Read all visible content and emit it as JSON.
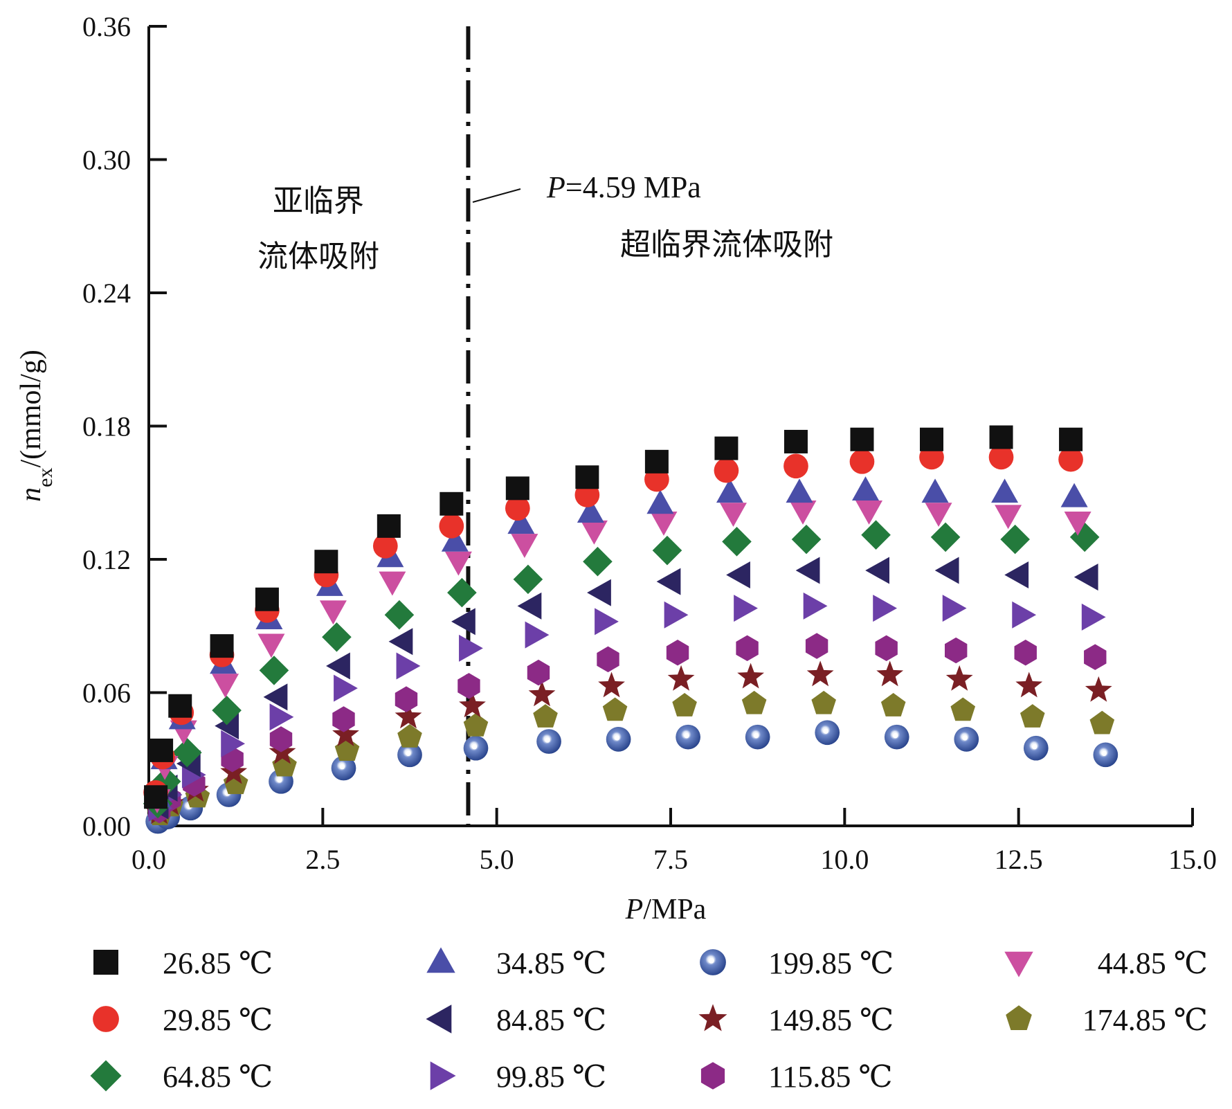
{
  "chart_data": {
    "type": "scatter",
    "xlabel_italic": "P",
    "xlabel_rest": "/MPa",
    "ylabel_italic": "n",
    "ylabel_sub": "ex",
    "ylabel_rest": "/(mmol/g)",
    "xlim": [
      0,
      15
    ],
    "ylim": [
      0,
      0.36
    ],
    "x_ticks": [
      "0.0",
      "2.5",
      "5.0",
      "7.5",
      "10.0",
      "12.5",
      "15.0"
    ],
    "y_ticks": [
      "0.00",
      "0.06",
      "0.12",
      "0.18",
      "0.24",
      "0.30",
      "0.36"
    ],
    "grid": false,
    "critical_line": {
      "x": 4.59,
      "label_italic": "P",
      "label_rest": "=4.59 MPa"
    },
    "annotations": {
      "subcritical_line1": "亚临界",
      "subcritical_line2": "流体吸附",
      "supercritical": "超临界流体吸附"
    },
    "legend_position": "bottom",
    "series": [
      {
        "name": "26.85 ℃",
        "marker": "square",
        "color": "#111111",
        "points": [
          [
            0.1,
            0.013
          ],
          [
            0.18,
            0.034
          ],
          [
            0.45,
            0.054
          ],
          [
            1.05,
            0.081
          ],
          [
            1.7,
            0.102
          ],
          [
            2.55,
            0.119
          ],
          [
            3.45,
            0.135
          ],
          [
            4.35,
            0.145
          ],
          [
            5.3,
            0.152
          ],
          [
            6.3,
            0.157
          ],
          [
            7.3,
            0.164
          ],
          [
            8.3,
            0.17
          ],
          [
            9.3,
            0.173
          ],
          [
            10.25,
            0.174
          ],
          [
            11.25,
            0.174
          ],
          [
            12.25,
            0.175
          ],
          [
            13.25,
            0.174
          ]
        ]
      },
      {
        "name": "29.85 ℃",
        "marker": "circle",
        "color": "#e8322a",
        "points": [
          [
            0.1,
            0.015
          ],
          [
            0.2,
            0.031
          ],
          [
            0.47,
            0.051
          ],
          [
            1.05,
            0.077
          ],
          [
            1.7,
            0.097
          ],
          [
            2.55,
            0.113
          ],
          [
            3.4,
            0.126
          ],
          [
            4.35,
            0.135
          ],
          [
            5.3,
            0.143
          ],
          [
            6.3,
            0.149
          ],
          [
            7.3,
            0.156
          ],
          [
            8.3,
            0.16
          ],
          [
            9.3,
            0.162
          ],
          [
            10.25,
            0.164
          ],
          [
            11.25,
            0.166
          ],
          [
            12.25,
            0.166
          ],
          [
            13.25,
            0.165
          ]
        ]
      },
      {
        "name": "34.85 ℃",
        "marker": "triangle-up",
        "color": "#4a4ea8",
        "points": [
          [
            0.12,
            0.013
          ],
          [
            0.22,
            0.03
          ],
          [
            0.48,
            0.048
          ],
          [
            1.07,
            0.073
          ],
          [
            1.73,
            0.093
          ],
          [
            2.6,
            0.108
          ],
          [
            3.47,
            0.121
          ],
          [
            4.4,
            0.128
          ],
          [
            5.35,
            0.136
          ],
          [
            6.35,
            0.141
          ],
          [
            7.35,
            0.145
          ],
          [
            8.35,
            0.15
          ],
          [
            9.35,
            0.15
          ],
          [
            10.3,
            0.151
          ],
          [
            11.3,
            0.15
          ],
          [
            12.3,
            0.15
          ],
          [
            13.3,
            0.148
          ]
        ]
      },
      {
        "name": "44.85 ℃",
        "marker": "triangle-down",
        "color": "#cc4fa0",
        "points": [
          [
            0.12,
            0.012
          ],
          [
            0.23,
            0.027
          ],
          [
            0.5,
            0.043
          ],
          [
            1.1,
            0.064
          ],
          [
            1.76,
            0.082
          ],
          [
            2.65,
            0.097
          ],
          [
            3.5,
            0.11
          ],
          [
            4.45,
            0.119
          ],
          [
            5.4,
            0.127
          ],
          [
            6.4,
            0.133
          ],
          [
            7.4,
            0.137
          ],
          [
            8.4,
            0.141
          ],
          [
            9.4,
            0.142
          ],
          [
            10.35,
            0.142
          ],
          [
            11.35,
            0.141
          ],
          [
            12.35,
            0.14
          ],
          [
            13.35,
            0.137
          ]
        ]
      },
      {
        "name": "64.85 ℃",
        "marker": "diamond",
        "color": "#237a3c",
        "points": [
          [
            0.13,
            0.01
          ],
          [
            0.25,
            0.02
          ],
          [
            0.55,
            0.033
          ],
          [
            1.12,
            0.052
          ],
          [
            1.8,
            0.07
          ],
          [
            2.7,
            0.085
          ],
          [
            3.6,
            0.095
          ],
          [
            4.5,
            0.105
          ],
          [
            5.45,
            0.111
          ],
          [
            6.45,
            0.119
          ],
          [
            7.45,
            0.124
          ],
          [
            8.45,
            0.128
          ],
          [
            9.45,
            0.129
          ],
          [
            10.45,
            0.131
          ],
          [
            11.45,
            0.13
          ],
          [
            12.45,
            0.129
          ],
          [
            13.45,
            0.13
          ]
        ]
      },
      {
        "name": "84.85 ℃",
        "marker": "triangle-left",
        "color": "#2c2561",
        "points": [
          [
            0.14,
            0.009
          ],
          [
            0.27,
            0.017
          ],
          [
            0.6,
            0.028
          ],
          [
            1.15,
            0.045
          ],
          [
            1.85,
            0.058
          ],
          [
            2.75,
            0.072
          ],
          [
            3.65,
            0.083
          ],
          [
            4.55,
            0.092
          ],
          [
            5.5,
            0.099
          ],
          [
            6.5,
            0.105
          ],
          [
            7.5,
            0.11
          ],
          [
            8.5,
            0.113
          ],
          [
            9.5,
            0.115
          ],
          [
            10.5,
            0.115
          ],
          [
            11.5,
            0.115
          ],
          [
            12.5,
            0.113
          ],
          [
            13.5,
            0.112
          ]
        ]
      },
      {
        "name": "99.85 ℃",
        "marker": "triangle-right",
        "color": "#6c3fa8",
        "points": [
          [
            0.14,
            0.008
          ],
          [
            0.28,
            0.014
          ],
          [
            0.62,
            0.023
          ],
          [
            1.18,
            0.037
          ],
          [
            1.88,
            0.049
          ],
          [
            2.8,
            0.062
          ],
          [
            3.7,
            0.072
          ],
          [
            4.6,
            0.08
          ],
          [
            5.55,
            0.086
          ],
          [
            6.55,
            0.092
          ],
          [
            7.55,
            0.095
          ],
          [
            8.55,
            0.098
          ],
          [
            9.55,
            0.099
          ],
          [
            10.55,
            0.098
          ],
          [
            11.55,
            0.098
          ],
          [
            12.55,
            0.095
          ],
          [
            13.55,
            0.094
          ]
        ]
      },
      {
        "name": "115.85 ℃",
        "marker": "hexagon",
        "color": "#8c2a86",
        "points": [
          [
            0.15,
            0.007
          ],
          [
            0.3,
            0.012
          ],
          [
            0.65,
            0.019
          ],
          [
            1.2,
            0.03
          ],
          [
            1.9,
            0.039
          ],
          [
            2.8,
            0.048
          ],
          [
            3.7,
            0.057
          ],
          [
            4.6,
            0.063
          ],
          [
            5.6,
            0.069
          ],
          [
            6.6,
            0.075
          ],
          [
            7.6,
            0.078
          ],
          [
            8.6,
            0.08
          ],
          [
            9.6,
            0.081
          ],
          [
            10.6,
            0.08
          ],
          [
            11.6,
            0.079
          ],
          [
            12.6,
            0.078
          ],
          [
            13.6,
            0.076
          ]
        ]
      },
      {
        "name": "149.85 ℃",
        "marker": "star",
        "color": "#7a1f24",
        "points": [
          [
            0.15,
            0.006
          ],
          [
            0.31,
            0.01
          ],
          [
            0.67,
            0.016
          ],
          [
            1.22,
            0.024
          ],
          [
            1.92,
            0.033
          ],
          [
            2.83,
            0.041
          ],
          [
            3.73,
            0.049
          ],
          [
            4.65,
            0.054
          ],
          [
            5.65,
            0.059
          ],
          [
            6.65,
            0.063
          ],
          [
            7.65,
            0.066
          ],
          [
            8.65,
            0.067
          ],
          [
            9.65,
            0.068
          ],
          [
            10.65,
            0.068
          ],
          [
            11.65,
            0.066
          ],
          [
            12.65,
            0.063
          ],
          [
            13.65,
            0.061
          ]
        ]
      },
      {
        "name": "174.85 ℃",
        "marker": "pentagon",
        "color": "#7d7a2a",
        "points": [
          [
            0.16,
            0.005
          ],
          [
            0.32,
            0.009
          ],
          [
            0.7,
            0.013
          ],
          [
            1.25,
            0.019
          ],
          [
            1.95,
            0.027
          ],
          [
            2.85,
            0.034
          ],
          [
            3.75,
            0.04
          ],
          [
            4.7,
            0.045
          ],
          [
            5.7,
            0.049
          ],
          [
            6.7,
            0.052
          ],
          [
            7.7,
            0.054
          ],
          [
            8.7,
            0.055
          ],
          [
            9.7,
            0.055
          ],
          [
            10.7,
            0.054
          ],
          [
            11.7,
            0.052
          ],
          [
            12.7,
            0.049
          ],
          [
            13.7,
            0.046
          ]
        ]
      },
      {
        "name": "199.85 ℃",
        "marker": "sphere",
        "color": "#2e4a9a",
        "points": [
          [
            0.13,
            0.002
          ],
          [
            0.27,
            0.004
          ],
          [
            0.6,
            0.008
          ],
          [
            1.15,
            0.014
          ],
          [
            1.9,
            0.02
          ],
          [
            2.8,
            0.026
          ],
          [
            3.75,
            0.032
          ],
          [
            4.7,
            0.035
          ],
          [
            5.75,
            0.038
          ],
          [
            6.75,
            0.039
          ],
          [
            7.75,
            0.04
          ],
          [
            8.75,
            0.04
          ],
          [
            9.75,
            0.042
          ],
          [
            10.75,
            0.04
          ],
          [
            11.75,
            0.039
          ],
          [
            12.75,
            0.035
          ],
          [
            13.75,
            0.032
          ]
        ]
      }
    ],
    "legend_order": [
      [
        "26.85 ℃",
        "34.85 ℃",
        "199.85 ℃",
        "44.85 ℃"
      ],
      [
        "29.85 ℃",
        "84.85 ℃",
        "149.85 ℃",
        "174.85 ℃"
      ],
      [
        "64.85 ℃",
        "99.85 ℃",
        "115.85 ℃"
      ]
    ]
  }
}
